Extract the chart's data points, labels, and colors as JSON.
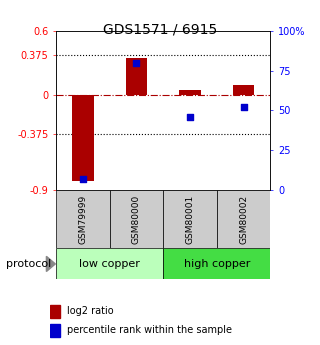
{
  "title": "GDS1571 / 6915",
  "samples": [
    "GSM79999",
    "GSM80000",
    "GSM80001",
    "GSM80002"
  ],
  "log2_ratio": [
    -0.82,
    0.35,
    0.04,
    0.09
  ],
  "percentile_rank": [
    7,
    80,
    46,
    52
  ],
  "groups": [
    {
      "label": "low copper",
      "samples": [
        0,
        1
      ],
      "color": "#bbffbb"
    },
    {
      "label": "high copper",
      "samples": [
        2,
        3
      ],
      "color": "#44dd44"
    }
  ],
  "ylim_left": [
    -0.9,
    0.6
  ],
  "ylim_right": [
    0,
    100
  ],
  "yticks_left": [
    -0.9,
    -0.375,
    0,
    0.375,
    0.6
  ],
  "ytick_labels_left": [
    "-0.9",
    "-0.375",
    "0",
    "0.375",
    "0.6"
  ],
  "yticks_right": [
    0,
    25,
    50,
    75,
    100
  ],
  "ytick_labels_right": [
    "0",
    "25",
    "50",
    "75",
    "100%"
  ],
  "hlines": [
    -0.375,
    0.375
  ],
  "bar_color": "#aa0000",
  "dot_color": "#0000cc",
  "zero_line_color": "#aa0000",
  "sample_box_color": "#cccccc",
  "bar_width": 0.4,
  "dot_size": 25,
  "title_fontsize": 10,
  "tick_fontsize": 7,
  "sample_fontsize": 6.5,
  "legend_fontsize": 7,
  "group_fontsize": 8,
  "protocol_fontsize": 8
}
